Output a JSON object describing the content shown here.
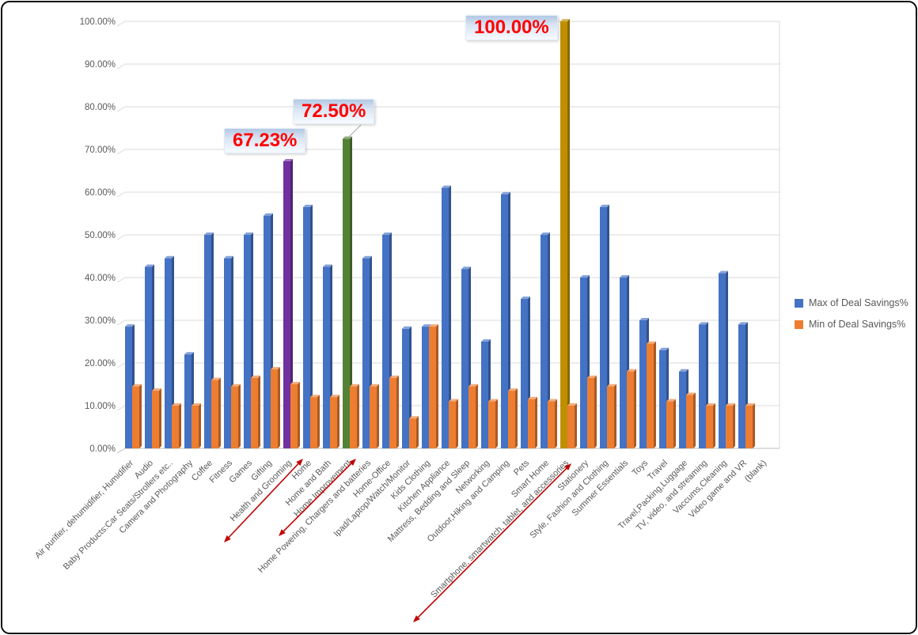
{
  "chart_data": {
    "type": "bar",
    "title": "",
    "categories": [
      "Air purifier, dehumidifier, Humidifier",
      "Audio",
      "Baby Products:Car Seats/Strollers etc..",
      "Camera and Photography",
      "Coffee",
      "Fitness",
      "Games",
      "Gifting",
      "Health and Grooming",
      "Home",
      "Home and Bath",
      "Home Improvement",
      "Home Powering, Chargers and batteries",
      "Home-Office",
      "Ipad/Laptop/Watch/Monitor",
      "Kids Clothing",
      "Kitchen Appliance",
      "Mattress, Bedding and Sleep",
      "Networking",
      "Outdoor,Hiking and Camping",
      "Pets",
      "Smart Home",
      "Smartphone, smartwatch, tablet, and accessories",
      "Stationery",
      "Style, Fashion and Clothing",
      "Summer Essentials",
      "Toys",
      "Travel",
      "Travel,Packing,Luggage",
      "TV, video, and streaming",
      "Vaccums,Cleaning",
      "Video game and VR",
      "(blank)"
    ],
    "series": [
      {
        "name": "Max of Deal Savings%",
        "color": "#4472C4",
        "values": [
          28.5,
          42.5,
          44.5,
          22,
          50,
          44.5,
          50,
          54.5,
          67.23,
          56.5,
          42.5,
          72.5,
          44.5,
          50,
          28,
          28.5,
          61,
          42,
          25,
          59.5,
          35,
          50,
          100,
          40,
          56.5,
          40,
          30,
          23,
          18,
          29,
          41,
          29,
          null
        ]
      },
      {
        "name": "Min of Deal Savings%",
        "color": "#ED7D31",
        "values": [
          14.5,
          13.5,
          10,
          10,
          16,
          14.5,
          16.5,
          18.5,
          15,
          12,
          12,
          14.5,
          14.5,
          16.5,
          7,
          28.5,
          11,
          14.5,
          11,
          13.5,
          11.5,
          11,
          10,
          16.5,
          14.5,
          18,
          24.5,
          11,
          12.5,
          10,
          10,
          10,
          null
        ]
      }
    ],
    "ylim": [
      0,
      100
    ],
    "y_tick_labels": [
      "0.00%",
      "10.00%",
      "20.00%",
      "30.00%",
      "40.00%",
      "50.00%",
      "60.00%",
      "70.00%",
      "80.00%",
      "90.00%",
      "100.00%"
    ],
    "grid": true,
    "legend_position": "right",
    "highlights": [
      {
        "category_index": 8,
        "category": "Health and Grooming",
        "series": "Max of Deal Savings%",
        "color": "#7030A0",
        "label": "67.23%"
      },
      {
        "category_index": 11,
        "category": "Home Improvement",
        "series": "Max of Deal Savings%",
        "color": "#548235",
        "label": "72.50%"
      },
      {
        "category_index": 22,
        "category": "Smartphone, smartwatch, tablet, and accessories",
        "series": "Max of Deal Savings%",
        "color": "#BF8F00",
        "label": "100.00%"
      }
    ],
    "annotation_arrows": [
      {
        "target": "Health and Grooming",
        "color": "#C00000"
      },
      {
        "target": "Home Improvement",
        "color": "#C00000"
      },
      {
        "target": "Smartphone, smartwatch, tablet, and accessories",
        "color": "#C00000"
      }
    ]
  },
  "legend": {
    "items": [
      {
        "label": "Max of Deal Savings%",
        "color": "#4472C4"
      },
      {
        "label": "Min of Deal Savings%",
        "color": "#ED7D31"
      }
    ]
  },
  "callouts": [
    {
      "text": "67.23%"
    },
    {
      "text": "72.50%"
    },
    {
      "text": "100.00%"
    }
  ],
  "colors": {
    "gridline": "#D9D9D9",
    "axis": "#BFBFBF",
    "tick_text": "#595959",
    "annotation_red": "#C00000",
    "callout_text": "#FF0000"
  }
}
